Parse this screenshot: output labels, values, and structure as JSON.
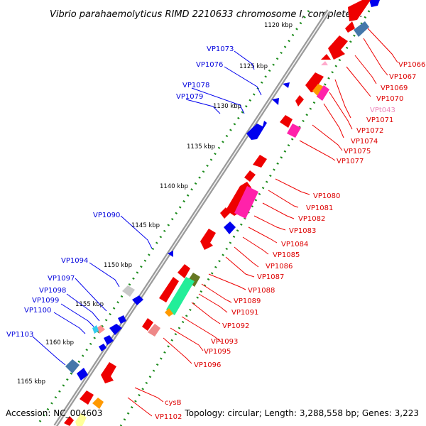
{
  "title": "Vibrio parahaemolyticus RIMD 2210633 chromosome I, complete ...",
  "accession": "Accession: NC_004603",
  "topology": "Topology: circular; Length: 3,288,558 bp; Genes: 3,223",
  "colors": {
    "forward_label": "#0000dd",
    "reverse_label": "#dd0000",
    "rna_label": "#ee88bb",
    "backbone": "#888888",
    "tick": "#1a8a1a"
  },
  "scale": [
    {
      "label": "1120 kbp",
      "kbp": 1120
    },
    {
      "label": "1125 kbp",
      "kbp": 1125
    },
    {
      "label": "1130 kbp",
      "kbp": 1130
    },
    {
      "label": "1135 kbp",
      "kbp": 1135
    },
    {
      "label": "1140 kbp",
      "kbp": 1140
    },
    {
      "label": "1145 kbp",
      "kbp": 1145
    },
    {
      "label": "1150 kbp",
      "kbp": 1150
    },
    {
      "label": "1155 kbp",
      "kbp": 1155
    },
    {
      "label": "1160 kbp",
      "kbp": 1160
    },
    {
      "label": "1165 kbp",
      "kbp": 1165
    }
  ],
  "forward_genes": [
    {
      "label": "VP1073",
      "color": "#0000ee"
    },
    {
      "label": "VP1076",
      "color": "#0000ee"
    },
    {
      "label": "VP1078",
      "color": "#0000ee"
    },
    {
      "label": "VP1079",
      "color": "#0000ee"
    },
    {
      "label": "VP1090",
      "color": "#0000ee"
    },
    {
      "label": "VP1094",
      "color": "#c0c0c0"
    },
    {
      "label": "VP1097",
      "color": "#0000ee"
    },
    {
      "label": "VP1098",
      "color": "#0000ee"
    },
    {
      "label": "VP1099",
      "color": "#ff9090"
    },
    {
      "label": "VP1100",
      "color": "#33ccee"
    },
    {
      "label": "VP1103",
      "color": "#4477aa"
    }
  ],
  "reverse_genes": [
    {
      "label": "VP1066",
      "color": "#ee0000"
    },
    {
      "label": "VP1067",
      "color": "#ee0000"
    },
    {
      "label": "VP1069",
      "color": "#ee0000"
    },
    {
      "label": "VP1070",
      "color": "#ee0000"
    },
    {
      "label": "VPt043",
      "color": "#ffaacc"
    },
    {
      "label": "VP1071",
      "color": "#ee0000"
    },
    {
      "label": "VP1072",
      "color": "#ee0000"
    },
    {
      "label": "VP1074",
      "color": "#ee0000"
    },
    {
      "label": "VP1075",
      "color": "#ff22aa"
    },
    {
      "label": "VP1077",
      "color": "#ee0000"
    },
    {
      "label": "VP1080",
      "color": "#ee0000"
    },
    {
      "label": "VP1081",
      "color": "#ee0000"
    },
    {
      "label": "VP1082",
      "color": "#ee0000"
    },
    {
      "label": "VP1083",
      "color": "#ff22aa"
    },
    {
      "label": "VP1084",
      "color": "#ee0000"
    },
    {
      "label": "VP1085",
      "color": "#ee0000"
    },
    {
      "label": "VP1086",
      "color": "#ee0000"
    },
    {
      "label": "VP1087",
      "color": "#ee0000"
    },
    {
      "label": "VP1088",
      "color": "#667722"
    },
    {
      "label": "VP1089",
      "color": "#22ee99"
    },
    {
      "label": "VP1091",
      "color": "#ee0000"
    },
    {
      "label": "VP1092",
      "color": "#ee0000"
    },
    {
      "label": "VP1093",
      "color": "#ee0000"
    },
    {
      "label": "VP1095",
      "color": "#ee8888"
    },
    {
      "label": "VP1096",
      "color": "#ee0000"
    },
    {
      "label": "cysB",
      "color": "#ee0000"
    },
    {
      "label": "VP1102",
      "color": "#ee0000"
    }
  ]
}
